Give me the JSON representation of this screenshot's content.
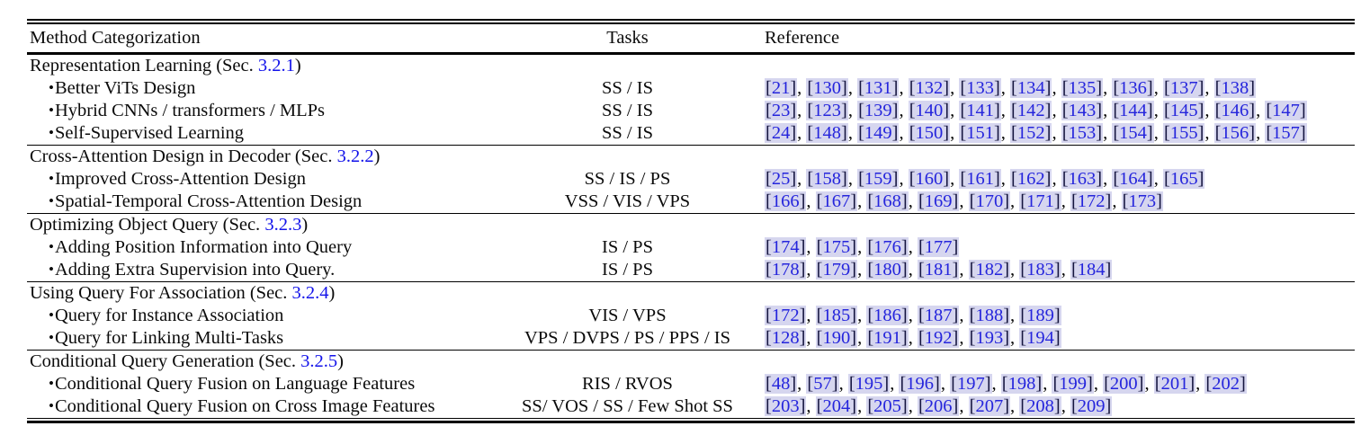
{
  "table": {
    "columns": [
      "Method Categorization",
      "Tasks",
      "Reference"
    ],
    "bullet": "•",
    "colors": {
      "section_link": "#1313ea",
      "reference_number": "#2525dc",
      "reference_chip_bg": "#d6d6ef",
      "rule": "#000000"
    },
    "sections": [
      {
        "title_prefix": "Representation Learning (Sec. ",
        "sec_link": "3.2.1",
        "title_suffix": ")",
        "rows": [
          {
            "label": "Better ViTs Design",
            "tasks": "SS / IS",
            "refs": [
              "21",
              "130",
              "131",
              "132",
              "133",
              "134",
              "135",
              "136",
              "137",
              "138"
            ]
          },
          {
            "label": "Hybrid CNNs / transformers / MLPs",
            "tasks": "SS / IS",
            "refs": [
              "23",
              "123",
              "139",
              "140",
              "141",
              "142",
              "143",
              "144",
              "145",
              "146",
              "147"
            ]
          },
          {
            "label": "Self-Supervised Learning",
            "tasks": "SS / IS",
            "refs": [
              "24",
              "148",
              "149",
              "150",
              "151",
              "152",
              "153",
              "154",
              "155",
              "156",
              "157"
            ]
          }
        ]
      },
      {
        "title_prefix": "Cross-Attention Design in Decoder (Sec. ",
        "sec_link": "3.2.2",
        "title_suffix": ")",
        "rows": [
          {
            "label": "Improved Cross-Attention Design",
            "tasks": "SS / IS / PS",
            "refs": [
              "25",
              "158",
              "159",
              "160",
              "161",
              "162",
              "163",
              "164",
              "165"
            ]
          },
          {
            "label": "Spatial-Temporal Cross-Attention Design",
            "tasks": "VSS / VIS / VPS",
            "refs": [
              "166",
              "167",
              "168",
              "169",
              "170",
              "171",
              "172",
              "173"
            ]
          }
        ]
      },
      {
        "title_prefix": "Optimizing Object Query (Sec. ",
        "sec_link": "3.2.3",
        "title_suffix": ")",
        "rows": [
          {
            "label": "Adding Position Information into Query",
            "tasks": "IS / PS",
            "refs": [
              "174",
              "175",
              "176",
              "177"
            ]
          },
          {
            "label": "Adding Extra Supervision into Query.",
            "tasks": "IS / PS",
            "refs": [
              "178",
              "179",
              "180",
              "181",
              "182",
              "183",
              "184"
            ]
          }
        ]
      },
      {
        "title_prefix": "Using Query For Association (Sec. ",
        "sec_link": "3.2.4",
        "title_suffix": ")",
        "rows": [
          {
            "label": "Query for Instance Association",
            "tasks": "VIS / VPS",
            "refs": [
              "172",
              "185",
              "186",
              "187",
              "188",
              "189"
            ]
          },
          {
            "label": "Query for Linking Multi-Tasks",
            "tasks": "VPS / DVPS / PS / PPS / IS",
            "refs": [
              "128",
              "190",
              "191",
              "192",
              "193",
              "194"
            ]
          }
        ]
      },
      {
        "title_prefix": "Conditional Query Generation (Sec. ",
        "sec_link": "3.2.5",
        "title_suffix": ")",
        "rows": [
          {
            "label": "Conditional Query Fusion on Language Features",
            "tasks": "RIS / RVOS",
            "refs": [
              "48",
              "57",
              "195",
              "196",
              "197",
              "198",
              "199",
              "200",
              "201",
              "202"
            ]
          },
          {
            "label": "Conditional Query Fusion on Cross Image Features",
            "tasks": "SS/ VOS / SS / Few Shot SS",
            "refs": [
              "203",
              "204",
              "205",
              "206",
              "207",
              "208",
              "209"
            ]
          }
        ]
      }
    ]
  }
}
